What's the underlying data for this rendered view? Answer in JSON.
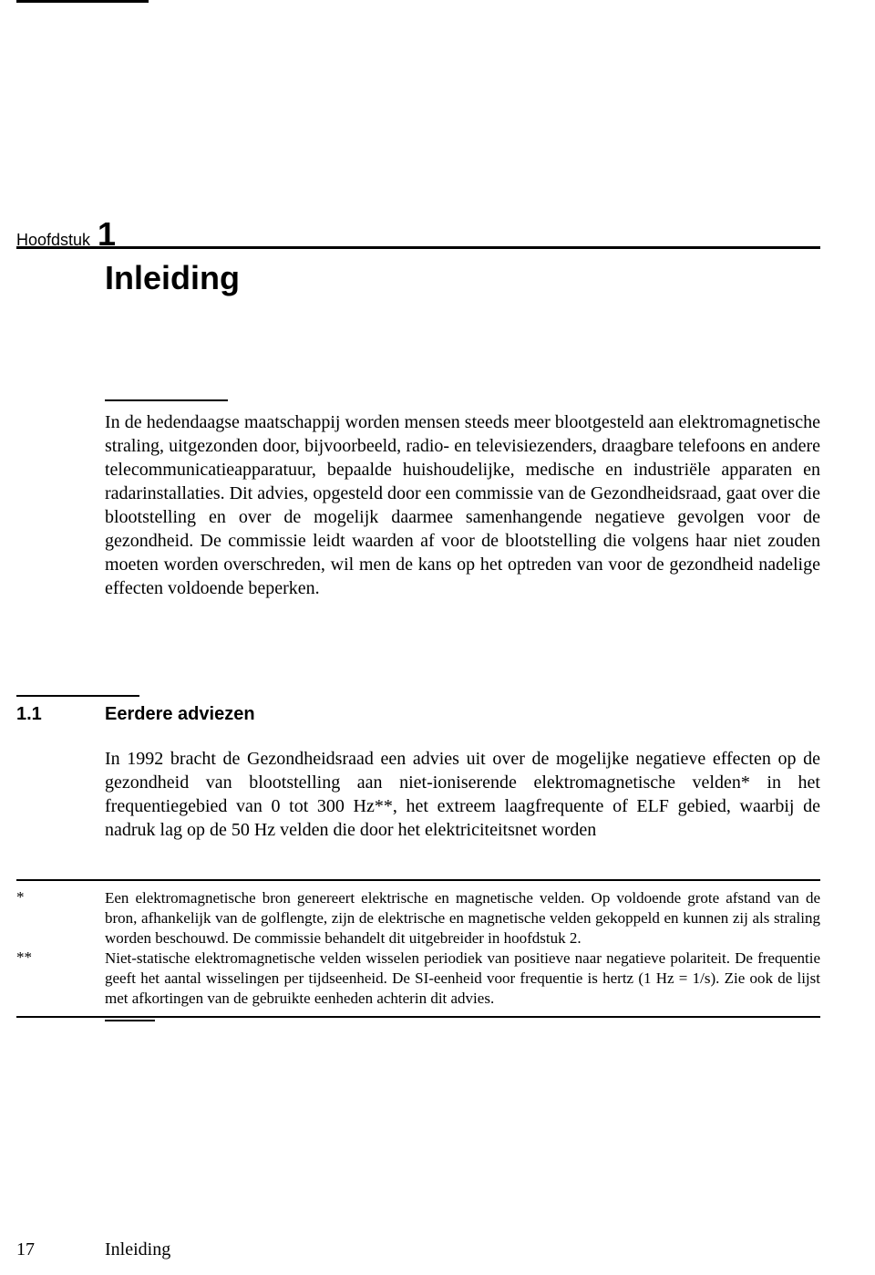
{
  "chapter": {
    "label": "Hoofdstuk",
    "number": "1",
    "title": "Inleiding"
  },
  "intro_paragraph": "In de hedendaagse maatschappij worden mensen steeds meer blootgesteld aan elektromagnetische straling, uitgezonden door, bijvoorbeeld, radio- en televisiezenders, draagbare telefoons en andere telecommunicatieapparatuur, bepaalde huishoudelijke, medische en industriële apparaten en radarinstallaties. Dit advies, opgesteld door een commissie van de Gezondheidsraad, gaat over die blootstelling en over de mogelijk daarmee samenhangende negatieve gevolgen voor de gezondheid. De commissie leidt waarden af voor de blootstelling die volgens haar niet zouden moeten worden overschreden, wil men de kans op het optreden van voor de gezondheid nadelige effecten voldoende beperken.",
  "section": {
    "number": "1.1",
    "title": "Eerdere adviezen",
    "paragraph": "In 1992 bracht de Gezondheidsraad een advies uit over de mogelijke negatieve effecten op de gezondheid van blootstelling aan niet-ioniserende elektromagnetische velden* in het frequentiegebied van 0 tot 300 Hz**, het extreem laagfrequente of ELF gebied, waarbij de nadruk lag op de 50 Hz velden die door het elektriciteitsnet worden"
  },
  "footnotes": [
    {
      "mark": "*",
      "text": "Een elektromagnetische bron genereert elektrische en magnetische velden. Op voldoende grote afstand van de bron, afhankelijk van de golflengte, zijn de elektrische en magnetische velden gekoppeld en kunnen zij als straling worden beschouwd. De commissie behandelt dit uitgebreider in hoofdstuk 2."
    },
    {
      "mark": "**",
      "text": "Niet-statische elektromagnetische velden wisselen periodiek van positieve naar negatieve polariteit. De frequentie geeft het aantal wisselingen per tijdseenheid. De SI-eenheid voor frequentie is hertz (1 Hz = 1/s). Zie ook de lijst met afkortingen van de gebruikte eenheden achterin dit advies."
    }
  ],
  "footer": {
    "page": "17",
    "running": "Inleiding"
  }
}
